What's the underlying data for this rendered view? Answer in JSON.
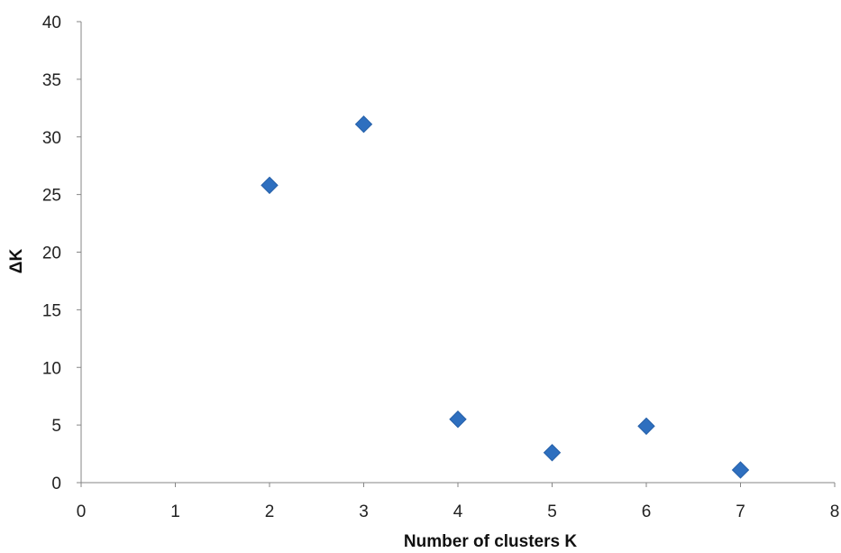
{
  "chart_data": {
    "type": "scatter",
    "title": "",
    "xlabel": "Number of clusters K",
    "ylabel": "ΔK",
    "xlim": [
      0,
      8
    ],
    "ylim": [
      0,
      40
    ],
    "x_ticks": [
      "0",
      "1",
      "2",
      "3",
      "4",
      "5",
      "6",
      "7",
      "8"
    ],
    "y_ticks": [
      "0",
      "5",
      "10",
      "15",
      "20",
      "25",
      "30",
      "35",
      "40"
    ],
    "grid": false,
    "legend": "none",
    "marker": "diamond",
    "colors": {
      "point": "#2E6FBF",
      "axis": "#868686"
    },
    "series": [
      {
        "x": [
          2,
          3,
          4,
          5,
          6,
          7
        ],
        "y": [
          25.8,
          31.1,
          5.5,
          2.6,
          4.9,
          1.1
        ]
      }
    ]
  }
}
